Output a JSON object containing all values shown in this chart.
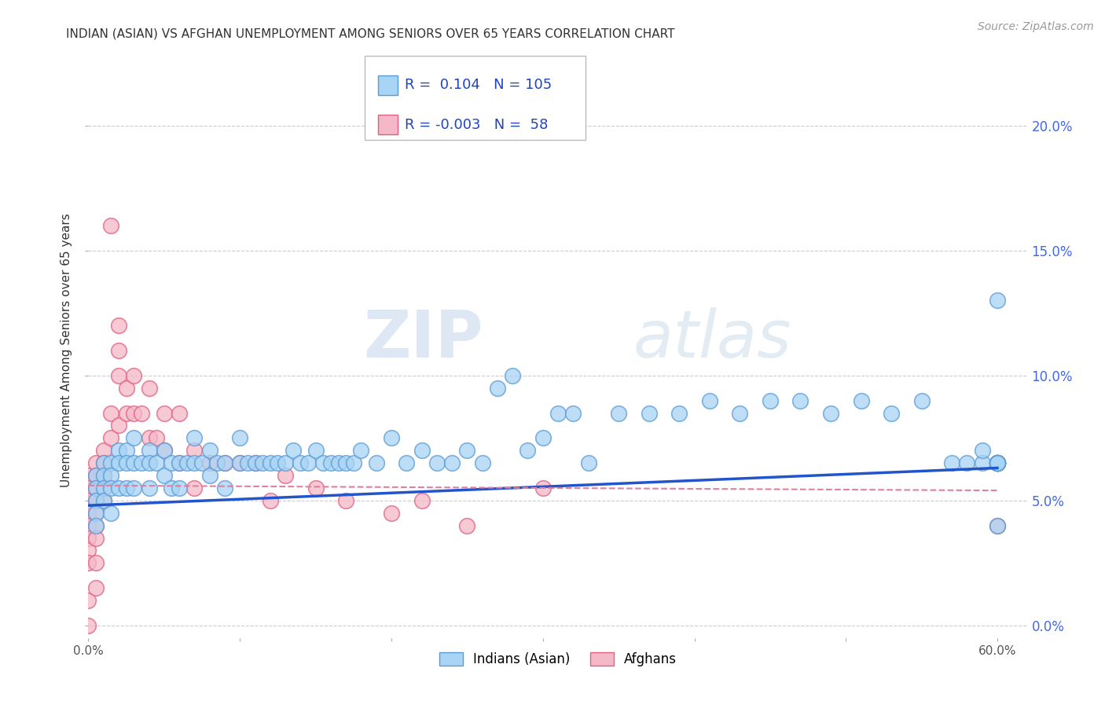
{
  "title": "INDIAN (ASIAN) VS AFGHAN UNEMPLOYMENT AMONG SENIORS OVER 65 YEARS CORRELATION CHART",
  "source": "Source: ZipAtlas.com",
  "ylabel": "Unemployment Among Seniors over 65 years",
  "xlim": [
    0.0,
    0.62
  ],
  "ylim": [
    -0.005,
    0.225
  ],
  "xticks": [
    0.0,
    0.1,
    0.2,
    0.3,
    0.4,
    0.5,
    0.6
  ],
  "xticklabels": [
    "0.0%",
    "",
    "",
    "",
    "",
    "",
    "60.0%"
  ],
  "yticks": [
    0.0,
    0.05,
    0.1,
    0.15,
    0.2
  ],
  "yticklabels": [
    "0.0%",
    "5.0%",
    "10.0%",
    "15.0%",
    "20.0%"
  ],
  "indian_R": 0.104,
  "indian_N": 105,
  "afghan_R": -0.003,
  "afghan_N": 58,
  "indian_color": "#a8d4f5",
  "afghan_color": "#f5b8c8",
  "indian_edge": "#5b9bd5",
  "afghan_edge": "#e06080",
  "trend_indian_color": "#2255cc",
  "trend_afghan_color": "#e080a0",
  "watermark_zip": "ZIP",
  "watermark_atlas": "atlas",
  "indian_x": [
    0.005,
    0.005,
    0.005,
    0.005,
    0.005,
    0.01,
    0.01,
    0.01,
    0.01,
    0.015,
    0.015,
    0.015,
    0.015,
    0.02,
    0.02,
    0.02,
    0.025,
    0.025,
    0.025,
    0.03,
    0.03,
    0.03,
    0.035,
    0.04,
    0.04,
    0.04,
    0.045,
    0.05,
    0.05,
    0.055,
    0.055,
    0.06,
    0.06,
    0.065,
    0.07,
    0.07,
    0.075,
    0.08,
    0.08,
    0.085,
    0.09,
    0.09,
    0.1,
    0.1,
    0.105,
    0.11,
    0.115,
    0.12,
    0.125,
    0.13,
    0.135,
    0.14,
    0.145,
    0.15,
    0.155,
    0.16,
    0.165,
    0.17,
    0.175,
    0.18,
    0.19,
    0.2,
    0.21,
    0.22,
    0.23,
    0.24,
    0.25,
    0.26,
    0.27,
    0.28,
    0.29,
    0.3,
    0.31,
    0.32,
    0.33,
    0.35,
    0.37,
    0.39,
    0.41,
    0.43,
    0.45,
    0.47,
    0.49,
    0.51,
    0.53,
    0.55,
    0.57,
    0.58,
    0.59,
    0.59,
    0.6,
    0.6,
    0.6,
    0.6,
    0.6,
    0.6,
    0.6,
    0.6,
    0.6,
    0.6,
    0.6,
    0.6,
    0.6,
    0.6,
    0.6
  ],
  "indian_y": [
    0.06,
    0.055,
    0.05,
    0.045,
    0.04,
    0.065,
    0.06,
    0.055,
    0.05,
    0.065,
    0.06,
    0.055,
    0.045,
    0.07,
    0.065,
    0.055,
    0.07,
    0.065,
    0.055,
    0.075,
    0.065,
    0.055,
    0.065,
    0.07,
    0.065,
    0.055,
    0.065,
    0.07,
    0.06,
    0.065,
    0.055,
    0.065,
    0.055,
    0.065,
    0.075,
    0.065,
    0.065,
    0.07,
    0.06,
    0.065,
    0.065,
    0.055,
    0.075,
    0.065,
    0.065,
    0.065,
    0.065,
    0.065,
    0.065,
    0.065,
    0.07,
    0.065,
    0.065,
    0.07,
    0.065,
    0.065,
    0.065,
    0.065,
    0.065,
    0.07,
    0.065,
    0.075,
    0.065,
    0.07,
    0.065,
    0.065,
    0.07,
    0.065,
    0.095,
    0.1,
    0.07,
    0.075,
    0.085,
    0.085,
    0.065,
    0.085,
    0.085,
    0.085,
    0.09,
    0.085,
    0.09,
    0.09,
    0.085,
    0.09,
    0.085,
    0.09,
    0.065,
    0.065,
    0.065,
    0.07,
    0.065,
    0.065,
    0.065,
    0.065,
    0.065,
    0.065,
    0.065,
    0.065,
    0.065,
    0.065,
    0.065,
    0.065,
    0.065,
    0.13,
    0.04
  ],
  "afghan_x": [
    0.0,
    0.0,
    0.0,
    0.0,
    0.0,
    0.0,
    0.0,
    0.0,
    0.0,
    0.0,
    0.005,
    0.005,
    0.005,
    0.005,
    0.005,
    0.005,
    0.005,
    0.005,
    0.005,
    0.01,
    0.01,
    0.01,
    0.01,
    0.01,
    0.015,
    0.015,
    0.015,
    0.02,
    0.02,
    0.02,
    0.02,
    0.025,
    0.025,
    0.03,
    0.03,
    0.035,
    0.04,
    0.04,
    0.045,
    0.05,
    0.05,
    0.06,
    0.06,
    0.07,
    0.07,
    0.08,
    0.09,
    0.1,
    0.11,
    0.12,
    0.13,
    0.15,
    0.17,
    0.2,
    0.22,
    0.25,
    0.3,
    0.6
  ],
  "afghan_y": [
    0.06,
    0.055,
    0.05,
    0.045,
    0.04,
    0.035,
    0.03,
    0.025,
    0.01,
    0.0,
    0.065,
    0.06,
    0.055,
    0.05,
    0.045,
    0.04,
    0.035,
    0.025,
    0.015,
    0.07,
    0.065,
    0.06,
    0.055,
    0.05,
    0.16,
    0.085,
    0.075,
    0.12,
    0.11,
    0.1,
    0.08,
    0.095,
    0.085,
    0.1,
    0.085,
    0.085,
    0.095,
    0.075,
    0.075,
    0.085,
    0.07,
    0.085,
    0.065,
    0.07,
    0.055,
    0.065,
    0.065,
    0.065,
    0.065,
    0.05,
    0.06,
    0.055,
    0.05,
    0.045,
    0.05,
    0.04,
    0.055,
    0.04
  ],
  "trend_indian_x0": 0.0,
  "trend_indian_y0": 0.048,
  "trend_indian_x1": 0.6,
  "trend_indian_y1": 0.063,
  "trend_afghan_x0": 0.0,
  "trend_afghan_y0": 0.056,
  "trend_afghan_x1": 0.6,
  "trend_afghan_y1": 0.054
}
